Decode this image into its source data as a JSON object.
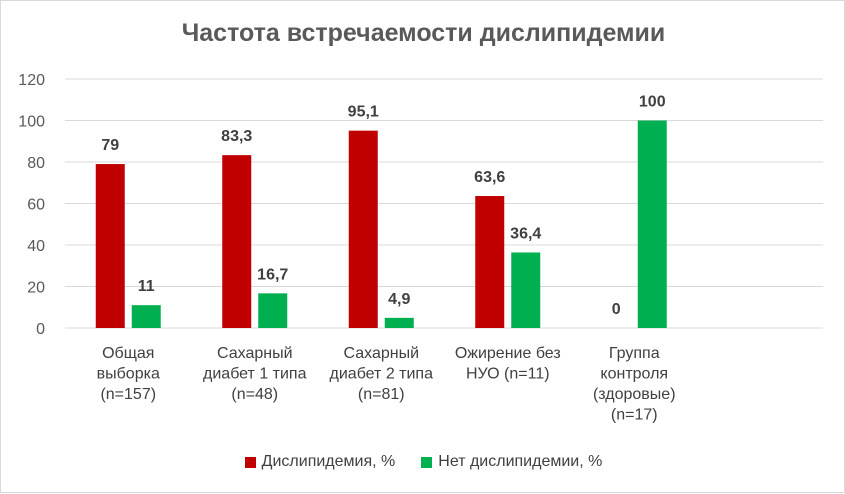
{
  "chart_data": {
    "type": "bar",
    "title": "Частота встречаемости дислипидемии",
    "categories": [
      [
        "Общая",
        "выборка",
        "(n=157)"
      ],
      [
        "Сахарный",
        "диабет 1 типа",
        "(n=48)"
      ],
      [
        "Сахарный",
        "диабет 2 типа",
        "(n=81)"
      ],
      [
        "Ожирение без",
        "НУО (n=11)"
      ],
      [
        "Группа",
        "контроля",
        "(здоровые)",
        "(n=17)"
      ]
    ],
    "series": [
      {
        "name": "Дислипидемия, %",
        "color": "#c00000",
        "values": [
          79,
          83.3,
          95.1,
          63.6,
          0
        ],
        "labels": [
          "79",
          "83,3",
          "95,1",
          "63,6",
          "0"
        ]
      },
      {
        "name": "Нет дислипидемии, %",
        "color": "#00b050",
        "values": [
          11,
          16.7,
          4.9,
          36.4,
          100
        ],
        "labels": [
          "11",
          "16,7",
          "4,9",
          "36,4",
          "100"
        ]
      }
    ],
    "ylim": [
      0,
      120
    ],
    "yticks": [
      0,
      20,
      40,
      60,
      80,
      100,
      120
    ],
    "grid": true,
    "legend_position": "bottom"
  }
}
